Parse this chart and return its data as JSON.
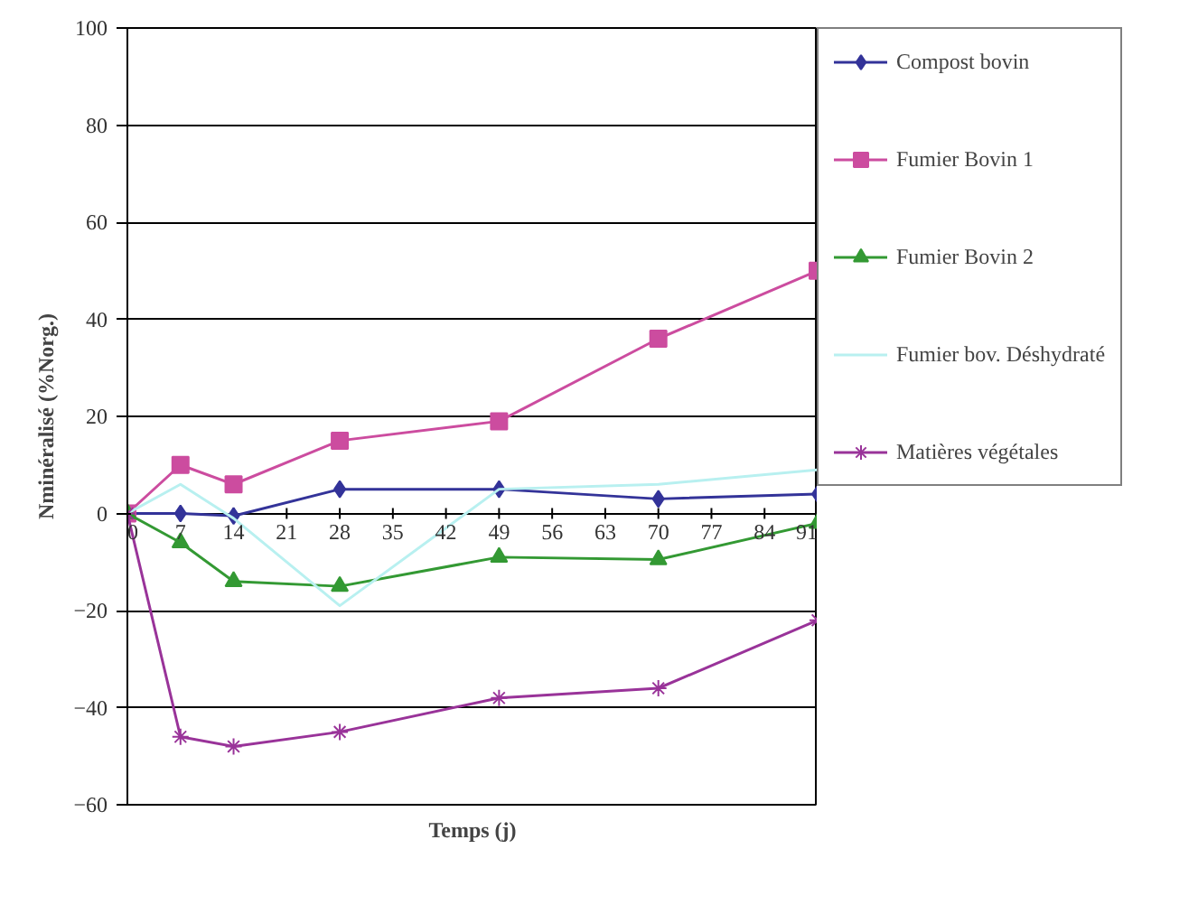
{
  "chart_data": {
    "type": "line",
    "xlabel": "Temps (j)",
    "ylabel": "Nminéralisé (%Norg.)",
    "x": [
      0,
      7,
      14,
      28,
      49,
      70,
      91
    ],
    "series": [
      {
        "name": "Compost bovin",
        "color": "#333399",
        "marker": "diamond",
        "values": [
          0,
          0,
          -0.5,
          5,
          5,
          3,
          4
        ]
      },
      {
        "name": "Fumier Bovin 1",
        "color": "#cc4c9f",
        "marker": "square",
        "values": [
          0,
          10,
          6,
          15,
          19,
          36,
          50
        ]
      },
      {
        "name": "Fumier Bovin 2",
        "color": "#339933",
        "marker": "triangle",
        "values": [
          0,
          -6,
          -14,
          -15,
          -9,
          -9.5,
          -2
        ]
      },
      {
        "name": "Fumier bov. Déshydraté",
        "color": "#b8f0f0",
        "marker": "none",
        "values": [
          0,
          6,
          -1,
          -19,
          5,
          6,
          9
        ]
      },
      {
        "name": "Matières végétales",
        "color": "#993399",
        "marker": "cross",
        "values": [
          0,
          -46,
          -48,
          -45,
          -38,
          -36,
          -22
        ]
      }
    ],
    "xlim": [
      0,
      91
    ],
    "xticks": [
      0,
      7,
      14,
      21,
      28,
      35,
      42,
      49,
      56,
      63,
      70,
      77,
      84,
      91
    ],
    "ylim": [
      -60,
      100
    ],
    "yticks": [
      -60,
      -40,
      -20,
      0,
      20,
      40,
      60,
      80,
      100
    ],
    "grid": "y",
    "legend": "right"
  }
}
